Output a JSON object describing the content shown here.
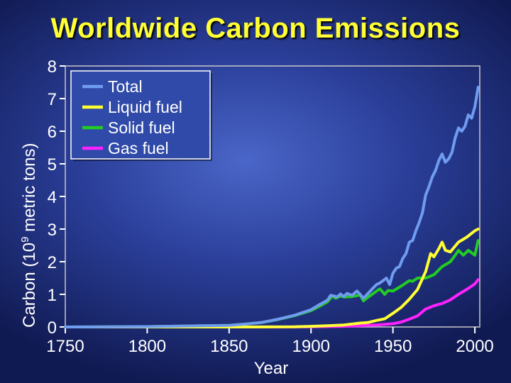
{
  "chart_data": {
    "type": "line",
    "title": "Worldwide Carbon Emissions",
    "xlabel": "Year",
    "ylabel_prefix": "Carbon (10",
    "ylabel_sup": "9",
    "ylabel_suffix": " metric tons)",
    "xlim": [
      1750,
      2003
    ],
    "ylim": [
      0,
      8
    ],
    "xticks": [
      1750,
      1800,
      1850,
      1900,
      1950,
      2000
    ],
    "yticks": [
      0,
      1,
      2,
      3,
      4,
      5,
      6,
      7,
      8
    ],
    "legend_position": "top-left",
    "series": [
      {
        "name": "Total",
        "color": "#6f9cf0",
        "x": [
          1750,
          1800,
          1850,
          1860,
          1870,
          1880,
          1890,
          1900,
          1905,
          1910,
          1912,
          1914,
          1916,
          1918,
          1920,
          1922,
          1925,
          1928,
          1930,
          1932,
          1935,
          1938,
          1940,
          1942,
          1944,
          1946,
          1948,
          1950,
          1952,
          1954,
          1956,
          1958,
          1960,
          1962,
          1964,
          1966,
          1968,
          1970,
          1972,
          1974,
          1976,
          1978,
          1980,
          1982,
          1984,
          1986,
          1988,
          1990,
          1992,
          1994,
          1996,
          1998,
          2000,
          2002
        ],
        "y": [
          0.0,
          0.01,
          0.05,
          0.09,
          0.14,
          0.24,
          0.36,
          0.53,
          0.68,
          0.82,
          0.97,
          0.95,
          0.92,
          1.01,
          0.93,
          1.03,
          0.97,
          1.1,
          1.0,
          0.88,
          1.04,
          1.2,
          1.3,
          1.35,
          1.42,
          1.5,
          1.3,
          1.65,
          1.8,
          1.85,
          2.1,
          2.25,
          2.6,
          2.65,
          2.95,
          3.2,
          3.5,
          4.05,
          4.3,
          4.6,
          4.8,
          5.1,
          5.3,
          5.05,
          5.15,
          5.35,
          5.8,
          6.1,
          6.0,
          6.15,
          6.5,
          6.4,
          6.75,
          7.35
        ]
      },
      {
        "name": "Liquid fuel",
        "color": "#ffff33",
        "x": [
          1750,
          1850,
          1890,
          1900,
          1910,
          1920,
          1930,
          1935,
          1940,
          1945,
          1950,
          1955,
          1960,
          1965,
          1970,
          1973,
          1975,
          1978,
          1980,
          1982,
          1985,
          1990,
          1995,
          2000,
          2002
        ],
        "y": [
          0,
          0,
          0.005,
          0.02,
          0.04,
          0.06,
          0.12,
          0.14,
          0.2,
          0.25,
          0.42,
          0.6,
          0.85,
          1.15,
          1.7,
          2.25,
          2.15,
          2.4,
          2.6,
          2.35,
          2.3,
          2.6,
          2.75,
          2.95,
          3.0
        ]
      },
      {
        "name": "Solid fuel",
        "color": "#22cc22",
        "x": [
          1750,
          1800,
          1850,
          1860,
          1870,
          1880,
          1890,
          1900,
          1905,
          1910,
          1913,
          1915,
          1918,
          1920,
          1925,
          1930,
          1932,
          1935,
          1940,
          1942,
          1945,
          1947,
          1950,
          1955,
          1960,
          1962,
          1965,
          1970,
          1975,
          1980,
          1985,
          1988,
          1990,
          1993,
          1996,
          2000,
          2002
        ],
        "y": [
          0,
          0.01,
          0.05,
          0.09,
          0.14,
          0.23,
          0.35,
          0.5,
          0.63,
          0.77,
          0.95,
          0.88,
          0.95,
          0.92,
          0.93,
          0.98,
          0.8,
          0.92,
          1.1,
          1.17,
          1.0,
          1.12,
          1.1,
          1.25,
          1.42,
          1.4,
          1.5,
          1.5,
          1.6,
          1.85,
          2.0,
          2.2,
          2.35,
          2.2,
          2.35,
          2.2,
          2.65
        ]
      },
      {
        "name": "Gas fuel",
        "color": "#ff22ff",
        "x": [
          1750,
          1880,
          1900,
          1920,
          1930,
          1940,
          1950,
          1955,
          1960,
          1965,
          1970,
          1975,
          1980,
          1985,
          1990,
          1995,
          2000,
          2002
        ],
        "y": [
          0,
          0,
          0.005,
          0.02,
          0.04,
          0.06,
          0.1,
          0.15,
          0.24,
          0.34,
          0.55,
          0.65,
          0.72,
          0.83,
          1.0,
          1.15,
          1.32,
          1.45
        ]
      }
    ]
  }
}
